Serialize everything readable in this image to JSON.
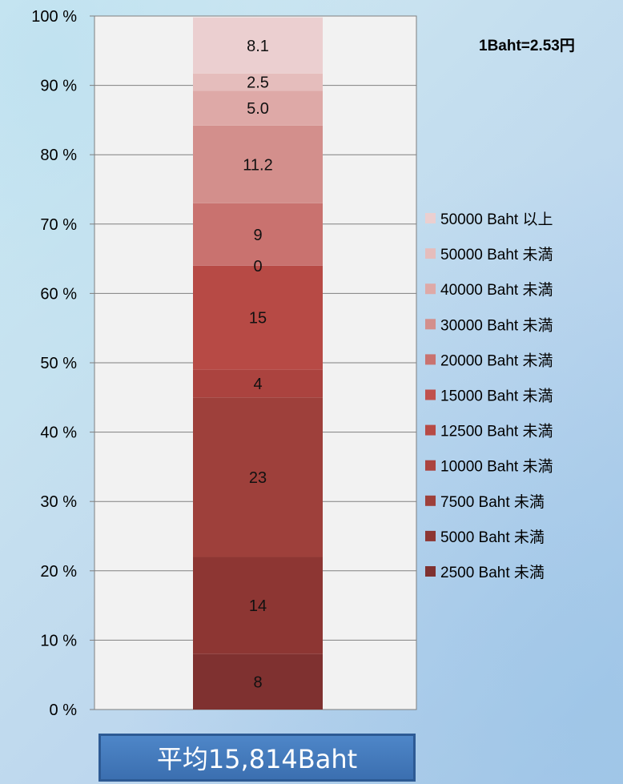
{
  "chart_data": {
    "type": "bar",
    "stacked": true,
    "categories": [
      ""
    ],
    "note": "1Baht=2.53円",
    "average_label": "平均15,814Baht",
    "yaxis": {
      "ticks": [
        "0 %",
        "10 %",
        "20 %",
        "30 %",
        "40 %",
        "50 %",
        "60 %",
        "70 %",
        "80 %",
        "90 %",
        "100 %"
      ],
      "ylim": [
        0,
        100
      ]
    },
    "grid": true,
    "legend_position": "right",
    "series": [
      {
        "name": "2500 Baht 未満",
        "label": "8",
        "value": 8.0,
        "color": "#7f3130"
      },
      {
        "name": "5000 Baht 未満",
        "label": "14",
        "value": 14.0,
        "color": "#8d3633"
      },
      {
        "name": "7500 Baht 未満",
        "label": "23",
        "value": 23.0,
        "color": "#9e403b"
      },
      {
        "name": "10000 Baht 未満",
        "label": "4",
        "value": 4.0,
        "color": "#ab433f"
      },
      {
        "name": "12500 Baht 未満",
        "label": "15",
        "value": 15.0,
        "color": "#b74a45"
      },
      {
        "name": "15000 Baht 未満",
        "label": "0",
        "value": 0.0,
        "color": "#c0504d"
      },
      {
        "name": "20000 Baht 未満",
        "label": "9",
        "value": 9.0,
        "color": "#c9726f"
      },
      {
        "name": "30000 Baht 未満",
        "label": "11.2",
        "value": 11.2,
        "color": "#d38f8c"
      },
      {
        "name": "40000 Baht 未満",
        "label": "5.0",
        "value": 5.0,
        "color": "#dea9a7"
      },
      {
        "name": "50000 Baht 未満",
        "label": "2.5",
        "value": 2.5,
        "color": "#e5bdbc"
      },
      {
        "name": "50000 Baht 以上",
        "label": "8.1",
        "value": 8.1,
        "color": "#ebcfd0"
      }
    ]
  }
}
